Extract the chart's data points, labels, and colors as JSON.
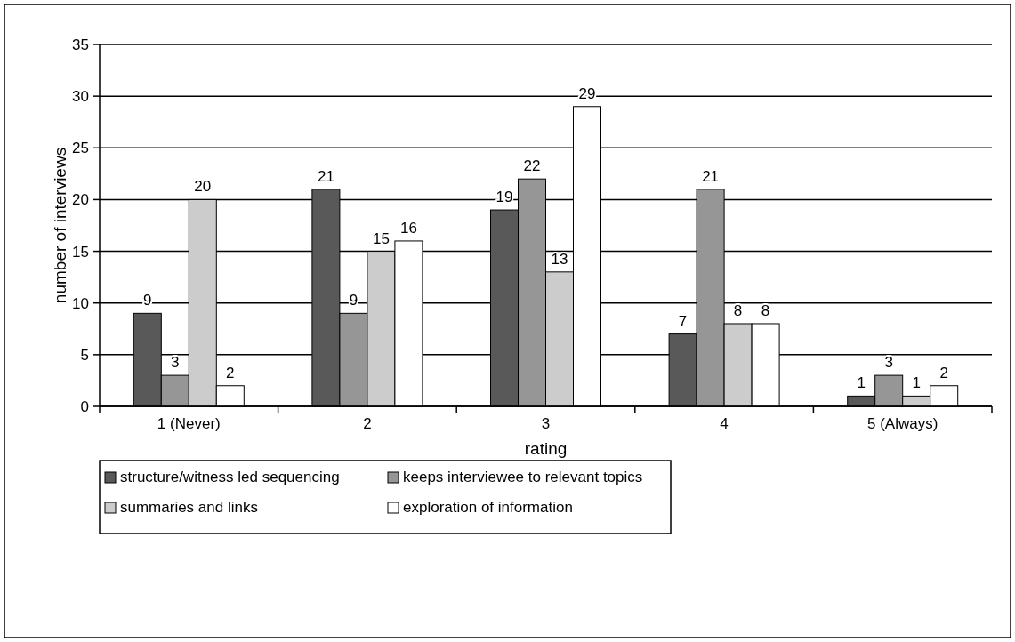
{
  "chart_data": {
    "type": "bar",
    "xlabel": "rating",
    "ylabel": "number of interviews",
    "categories": [
      "1 (Never)",
      "2",
      "3",
      "4",
      "5 (Always)"
    ],
    "series": [
      {
        "name": "structure/witness led sequencing",
        "color": "#595959",
        "values": [
          9,
          21,
          19,
          7,
          1
        ]
      },
      {
        "name": "keeps interviewee to relevant topics",
        "color": "#969696",
        "values": [
          3,
          9,
          22,
          21,
          3
        ]
      },
      {
        "name": "summaries and links",
        "color": "#cccccc",
        "values": [
          20,
          15,
          13,
          8,
          1
        ]
      },
      {
        "name": "exploration of information",
        "color": "#ffffff",
        "values": [
          2,
          16,
          29,
          8,
          2
        ]
      }
    ],
    "ylim": [
      0,
      35
    ],
    "yticks": [
      0,
      5,
      10,
      15,
      20,
      25,
      30,
      35
    ],
    "grid": "y",
    "data_labels": true,
    "legend": "bottom"
  }
}
